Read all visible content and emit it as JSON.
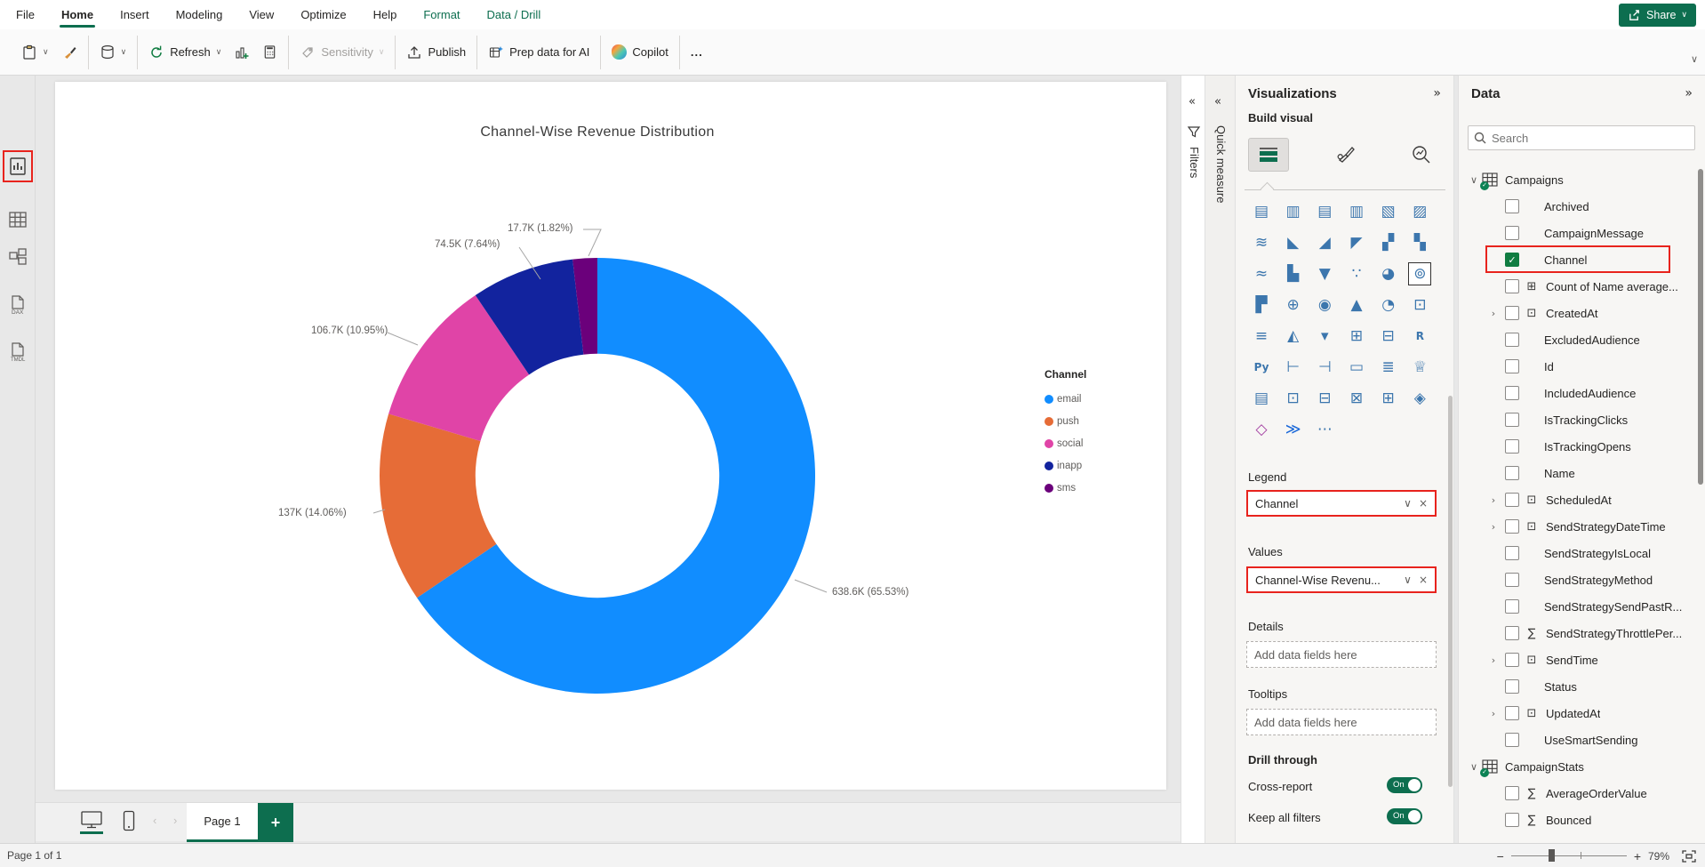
{
  "app": {
    "share_label": "Share"
  },
  "menu": {
    "items": [
      {
        "label": "File",
        "state": "normal"
      },
      {
        "label": "Home",
        "state": "active"
      },
      {
        "label": "Insert",
        "state": "normal"
      },
      {
        "label": "Modeling",
        "state": "normal"
      },
      {
        "label": "View",
        "state": "normal"
      },
      {
        "label": "Optimize",
        "state": "normal"
      },
      {
        "label": "Help",
        "state": "normal"
      },
      {
        "label": "Format",
        "state": "contextual"
      },
      {
        "label": "Data / Drill",
        "state": "contextual"
      }
    ]
  },
  "toolbar": {
    "refresh_label": "Refresh",
    "sensitivity_label": "Sensitivity",
    "publish_label": "Publish",
    "prep_data_label": "Prep data for AI",
    "copilot_label": "Copilot",
    "more_label": "..."
  },
  "chart_data": {
    "type": "donut",
    "title": "Channel-Wise Revenue Distribution",
    "legend_title": "Channel",
    "legend_position": "right",
    "categories": [
      "email",
      "push",
      "social",
      "inapp",
      "sms"
    ],
    "values": [
      638600,
      137000,
      106700,
      74500,
      17700
    ],
    "percentages": [
      65.53,
      14.06,
      10.95,
      7.64,
      1.82
    ],
    "labels": [
      "638.6K (65.53%)",
      "137K (14.06%)",
      "106.7K (10.95%)",
      "74.5K (7.64%)",
      "17.7K (1.82%)"
    ],
    "colors": [
      "#118DFF",
      "#E66C37",
      "#E044A7",
      "#12239E",
      "#6B007B"
    ],
    "inner_radius_ratio": 0.56
  },
  "panes": {
    "filters_label": "Filters",
    "quick_measure_label": "Quick measure"
  },
  "visualizations": {
    "title": "Visualizations",
    "build_visual_label": "Build visual",
    "icons": [
      {
        "name": "stacked-bar-chart",
        "glyph": "▤"
      },
      {
        "name": "stacked-column-chart",
        "glyph": "▥"
      },
      {
        "name": "clustered-bar-chart",
        "glyph": "▤"
      },
      {
        "name": "clustered-column-chart",
        "glyph": "▥"
      },
      {
        "name": "100-stacked-bar-chart",
        "glyph": "▧"
      },
      {
        "name": "100-stacked-column-chart",
        "glyph": "▨"
      },
      {
        "name": "line-chart",
        "glyph": "≋"
      },
      {
        "name": "area-chart",
        "glyph": "◣"
      },
      {
        "name": "stacked-area-chart",
        "glyph": "◢"
      },
      {
        "name": "100-stacked-area-chart",
        "glyph": "◤"
      },
      {
        "name": "line-and-stacked-column-chart",
        "glyph": "▞"
      },
      {
        "name": "line-and-clustered-column-chart",
        "glyph": "▚"
      },
      {
        "name": "ribbon-chart",
        "glyph": "≈"
      },
      {
        "name": "waterfall-chart",
        "glyph": "▙"
      },
      {
        "name": "funnel-chart",
        "glyph": "▼"
      },
      {
        "name": "scatter-chart",
        "glyph": "∵"
      },
      {
        "name": "pie-chart",
        "glyph": "◕"
      },
      {
        "name": "donut-chart",
        "glyph": "⊚",
        "selected": true
      },
      {
        "name": "treemap",
        "glyph": "▛"
      },
      {
        "name": "map",
        "glyph": "⊕"
      },
      {
        "name": "filled-map",
        "glyph": "◉"
      },
      {
        "name": "azure-map",
        "glyph": "▲"
      },
      {
        "name": "gauge",
        "glyph": "◔"
      },
      {
        "name": "card",
        "glyph": "⊡"
      },
      {
        "name": "multi-row-card",
        "glyph": "≡"
      },
      {
        "name": "kpi",
        "glyph": "◭"
      },
      {
        "name": "slicer",
        "glyph": "▾"
      },
      {
        "name": "table",
        "glyph": "⊞"
      },
      {
        "name": "matrix",
        "glyph": "⊟"
      },
      {
        "name": "r-script-visual",
        "glyph": "R",
        "text": true
      },
      {
        "name": "python-visual",
        "glyph": "Py",
        "text": true
      },
      {
        "name": "key-influencers",
        "glyph": "⊢"
      },
      {
        "name": "decomposition-tree",
        "glyph": "⊣"
      },
      {
        "name": "q-and-a",
        "glyph": "▭"
      },
      {
        "name": "smart-narrative",
        "glyph": "≣"
      },
      {
        "name": "metrics",
        "glyph": "♕"
      },
      {
        "name": "paginated-report",
        "glyph": "▤"
      },
      {
        "name": "new-card",
        "glyph": "⊡"
      },
      {
        "name": "new-slicer",
        "glyph": "⊟"
      },
      {
        "name": "text-slicer",
        "glyph": "⊠"
      },
      {
        "name": "button-slicer",
        "glyph": "⊞"
      },
      {
        "name": "azure-map-visual",
        "glyph": "◈"
      },
      {
        "name": "power-apps",
        "glyph": "◇",
        "color": "#A33EA1"
      },
      {
        "name": "power-automate",
        "glyph": "≫",
        "color": "#1766d8"
      },
      {
        "name": "more-visuals",
        "glyph": "⋯"
      }
    ],
    "wells": {
      "legend_label": "Legend",
      "legend_field": "Channel",
      "values_label": "Values",
      "values_field": "Channel-Wise Revenu...",
      "details_label": "Details",
      "tooltips_label": "Tooltips",
      "empty_placeholder": "Add data fields here"
    },
    "drill_through": {
      "title": "Drill through",
      "cross_report_label": "Cross-report",
      "keep_all_filters_label": "Keep all filters",
      "cross_report_state": "On",
      "keep_all_filters_state": "On"
    }
  },
  "data_pane": {
    "title": "Data",
    "search_placeholder": "Search",
    "tables": [
      {
        "name": "Campaigns",
        "expanded": true,
        "fields": [
          {
            "label": "Archived"
          },
          {
            "label": "CampaignMessage"
          },
          {
            "label": "Channel",
            "checked": true,
            "annotated": true
          },
          {
            "label": "Count of Name average...",
            "icon": "calc"
          },
          {
            "label": "CreatedAt",
            "icon": "date",
            "expandable": true
          },
          {
            "label": "ExcludedAudience"
          },
          {
            "label": "Id"
          },
          {
            "label": "IncludedAudience"
          },
          {
            "label": "IsTrackingClicks"
          },
          {
            "label": "IsTrackingOpens"
          },
          {
            "label": "Name"
          },
          {
            "label": "ScheduledAt",
            "icon": "date",
            "expandable": true
          },
          {
            "label": "SendStrategyDateTime",
            "icon": "date",
            "expandable": true
          },
          {
            "label": "SendStrategyIsLocal"
          },
          {
            "label": "SendStrategyMethod"
          },
          {
            "label": "SendStrategySendPastR..."
          },
          {
            "label": "SendStrategyThrottlePer...",
            "icon": "sigma"
          },
          {
            "label": "SendTime",
            "icon": "date",
            "expandable": true
          },
          {
            "label": "Status"
          },
          {
            "label": "UpdatedAt",
            "icon": "date",
            "expandable": true
          },
          {
            "label": "UseSmartSending"
          }
        ]
      },
      {
        "name": "CampaignStats",
        "expanded": true,
        "fields": [
          {
            "label": "AverageOrderValue",
            "icon": "sigma"
          },
          {
            "label": "Bounced",
            "icon": "sigma"
          }
        ]
      }
    ]
  },
  "footer": {
    "page_tab": "Page 1",
    "status": "Page 1 of 1",
    "zoom_level": "79%"
  },
  "colors": {
    "accent_green": "#0D6E4F",
    "annotation_red": "#E8231D"
  }
}
